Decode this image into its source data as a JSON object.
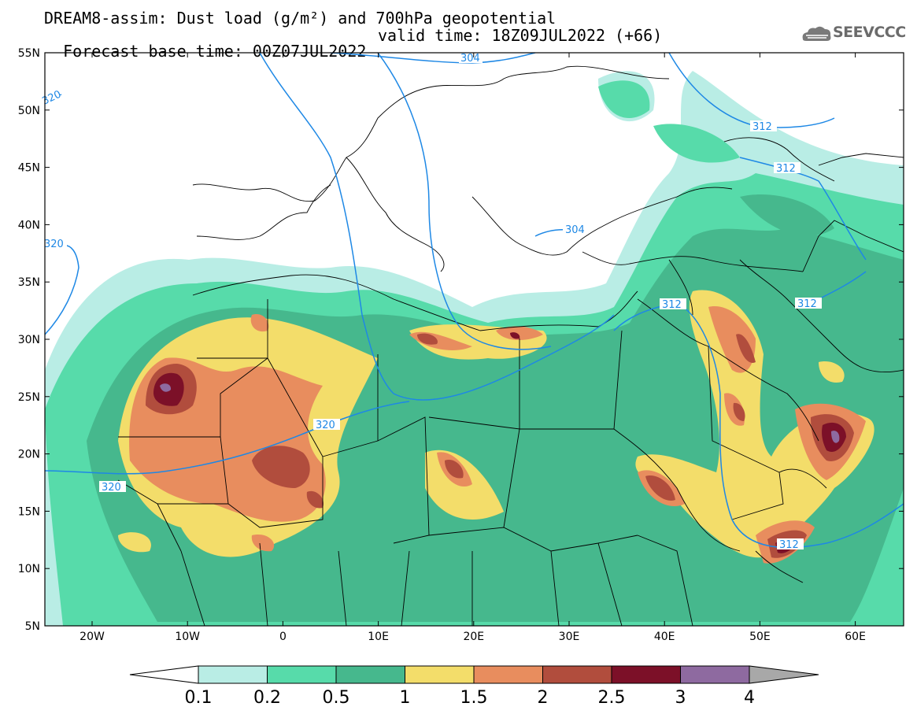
{
  "title_line1": "DREAM8-assim: Dust load (g/m²) and 700hPa geopotential",
  "title_line2_base": "Forecast base time: 00Z07JUL2022",
  "title_line2_valid": "valid time: 18Z09JUL2022 (+66)",
  "logo_text": "SEEVCCC",
  "lat_ticks": [
    "55N",
    "50N",
    "45N",
    "40N",
    "35N",
    "30N",
    "25N",
    "20N",
    "15N",
    "10N",
    "5N"
  ],
  "lon_ticks": [
    "20W",
    "10W",
    "0",
    "10E",
    "20E",
    "30E",
    "40E",
    "50E",
    "60E"
  ],
  "contour_labels": [
    "304",
    "312",
    "312",
    "320",
    "304",
    "312",
    "312",
    "320",
    "320",
    "312",
    "320"
  ],
  "colorbar": {
    "labels": [
      "0.1",
      "0.2",
      "0.5",
      "1",
      "1.5",
      "2",
      "2.5",
      "3",
      "4"
    ],
    "colors": [
      "#b9ede5",
      "#57dbaa",
      "#46b88d",
      "#f3dd6a",
      "#e88d5e",
      "#b14d3d",
      "#7c1028",
      "#8e6aa0"
    ],
    "under_color": "#ffffff",
    "over_color": "#a8a8a8"
  },
  "colors": {
    "contour_line": "#1e88e5",
    "dust_light": "#b9ede5",
    "dust_low": "#57dbaa",
    "dust_mid": "#46b88d",
    "dust_yellow": "#f3dd6a",
    "dust_orange": "#e88d5e",
    "dust_red": "#b14d3d",
    "dust_dark": "#7c1028",
    "dust_purple": "#8e6aa0"
  }
}
